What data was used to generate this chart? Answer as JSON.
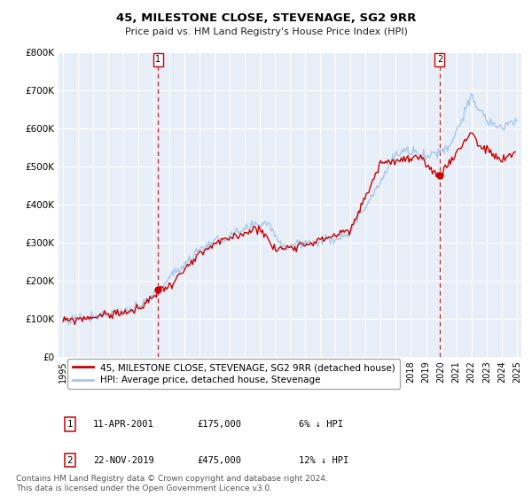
{
  "title": "45, MILESTONE CLOSE, STEVENAGE, SG2 9RR",
  "subtitle": "Price paid vs. HM Land Registry's House Price Index (HPI)",
  "legend_label1": "45, MILESTONE CLOSE, STEVENAGE, SG2 9RR (detached house)",
  "legend_label2": "HPI: Average price, detached house, Stevenage",
  "transaction1_label": "1",
  "transaction1_date": "11-APR-2001",
  "transaction1_price": "£175,000",
  "transaction1_pct": "6% ↓ HPI",
  "transaction2_label": "2",
  "transaction2_date": "22-NOV-2019",
  "transaction2_price": "£475,000",
  "transaction2_pct": "12% ↓ HPI",
  "marker1_x": 2001.28,
  "marker1_y": 175000,
  "marker2_x": 2019.9,
  "marker2_y": 475000,
  "vline1_x": 2001.28,
  "vline2_x": 2019.9,
  "price_line_color": "#cc0000",
  "hpi_line_color": "#a8c8e8",
  "vline_color": "#cc0000",
  "marker_color": "#cc0000",
  "background_color": "#ffffff",
  "plot_bg_color": "#e8eef8",
  "grid_color": "#ffffff",
  "ylim": [
    0,
    800000
  ],
  "xlim_start": 1994.7,
  "xlim_end": 2025.3,
  "yticks": [
    0,
    100000,
    200000,
    300000,
    400000,
    500000,
    600000,
    700000,
    800000
  ],
  "ylabel_labels": [
    "£0",
    "£100K",
    "£200K",
    "£300K",
    "£400K",
    "£500K",
    "£600K",
    "£700K",
    "£800K"
  ],
  "xticks": [
    1995,
    1996,
    1997,
    1998,
    1999,
    2000,
    2001,
    2002,
    2003,
    2004,
    2005,
    2006,
    2007,
    2008,
    2009,
    2010,
    2011,
    2012,
    2013,
    2014,
    2015,
    2016,
    2017,
    2018,
    2019,
    2020,
    2021,
    2022,
    2023,
    2024,
    2025
  ],
  "footnote": "Contains HM Land Registry data © Crown copyright and database right 2024.\nThis data is licensed under the Open Government Licence v3.0.",
  "title_fontsize": 9.5,
  "subtitle_fontsize": 8.0,
  "tick_fontsize": 7.5,
  "legend_fontsize": 7.5,
  "footnote_fontsize": 6.5
}
